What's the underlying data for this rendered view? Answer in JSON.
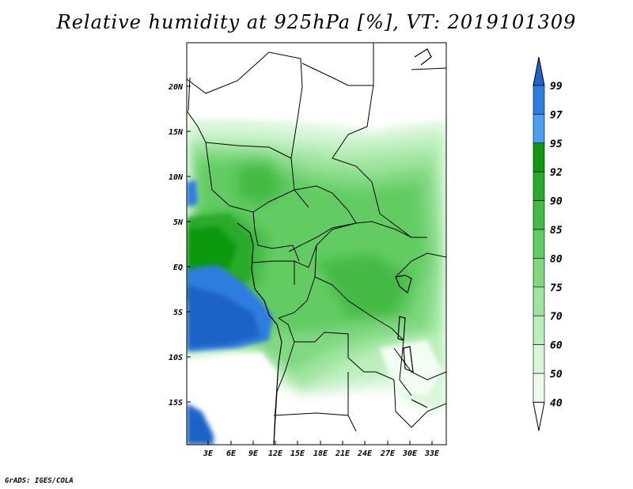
{
  "title": "Relative humidity at 925hPa [%], VT: 2019101309",
  "footer": "GrADS: IGES/COLA",
  "map": {
    "lat_labels": [
      "20N",
      "15N",
      "10N",
      "5N",
      "EQ",
      "5S",
      "10S",
      "15S"
    ],
    "lon_labels": [
      "3E",
      "6E",
      "9E",
      "12E",
      "15E",
      "18E",
      "21E",
      "24E",
      "27E",
      "30E",
      "33E"
    ]
  },
  "colorbar": {
    "levels": [
      "99",
      "97",
      "95",
      "92",
      "90",
      "85",
      "80",
      "75",
      "70",
      "60",
      "50",
      "40"
    ],
    "colors": [
      "#1e64c8",
      "#2d7de0",
      "#4aa0ee",
      "#119911",
      "#2aaa2a",
      "#44bb44",
      "#62cc62",
      "#80d880",
      "#9ee49e",
      "#bcefbc",
      "#d8f6d8",
      "#eefcee",
      "#ffffff"
    ]
  }
}
